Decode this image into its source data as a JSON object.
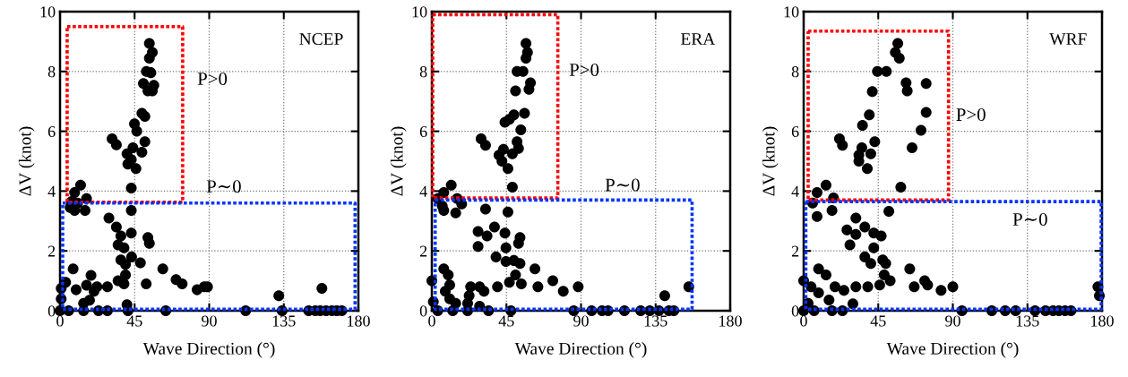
{
  "chart_data": [
    {
      "type": "scatter",
      "title": "NCEP",
      "xlabel": "Wave Direction (°)",
      "ylabel": "ΔV (knot)",
      "xlim": [
        0,
        180
      ],
      "ylim": [
        0,
        10
      ],
      "xticks": [
        0,
        45,
        90,
        135,
        180
      ],
      "yticks": [
        0,
        2,
        4,
        6,
        8,
        10
      ],
      "grid": true,
      "marker": "circle",
      "series": [
        {
          "type": "scatter",
          "color": "#000000",
          "x": [
            53.9,
            55.7,
            53.9,
            52.1,
            54.8,
            50.3,
            56.6,
            53,
            55.7,
            49.4,
            51.2,
            44.9,
            46.3,
            31.4,
            34,
            51.2,
            44,
            40.4,
            49.4,
            43,
            40.9,
            45.8,
            43,
            12.4,
            8.8,
            16,
            7,
            10.6,
            8.8,
            15.1,
            6.1,
            43,
            29.5,
            34,
            36.7,
            43,
            35,
            38.6,
            53,
            53.9,
            36.7,
            39.5,
            43.2,
            48.5,
            7.9,
            18.7,
            62,
            52,
            70,
            73.7,
            82.7,
            87,
            89,
            39.5,
            35,
            38.6,
            28.6,
            22.3,
            16,
            20.5,
            9.7,
            3.4,
            0.7,
            0.7,
            14.2,
            17.8,
            40.4,
            132,
            158,
            0,
            5.2,
            14.2,
            23.2,
            28.6,
            41,
            63.8,
            112,
            134,
            150,
            154,
            157,
            160.5,
            164,
            167,
            170
          ],
          "values": [
            8.94,
            8.64,
            8.44,
            8.0,
            7.96,
            7.6,
            7.54,
            7.35,
            7.35,
            6.6,
            6.5,
            6.25,
            6.0,
            5.75,
            5.55,
            5.65,
            5.45,
            5.25,
            5.3,
            5.05,
            4.9,
            4.75,
            4.1,
            4.2,
            3.95,
            3.75,
            3.65,
            3.6,
            3.35,
            3.35,
            3.45,
            3.35,
            3.1,
            2.8,
            2.5,
            2.6,
            2.2,
            2.1,
            2.45,
            2.25,
            1.7,
            1.55,
            1.8,
            1.6,
            1.4,
            1.18,
            1.4,
            0.9,
            1.04,
            0.9,
            0.7,
            0.8,
            0.8,
            1.2,
            1.0,
            0.9,
            0.8,
            0.8,
            0.85,
            0.65,
            0.7,
            0.95,
            0.75,
            0.4,
            0.25,
            0.35,
            0.2,
            0.5,
            0.75,
            0,
            0,
            0,
            0,
            0,
            0,
            0,
            0,
            0,
            0,
            0,
            0,
            0,
            0,
            0,
            0
          ]
        }
      ],
      "annotations": [
        "P>0",
        "P∼0"
      ]
    },
    {
      "type": "scatter",
      "title": "ERA",
      "xlabel": "Wave Direction (°)",
      "ylabel": "ΔV (knot)",
      "xlim": [
        0,
        180
      ],
      "ylim": [
        0,
        10
      ],
      "xticks": [
        0,
        45,
        90,
        135,
        180
      ],
      "yticks": [
        0,
        2,
        4,
        6,
        8,
        10
      ],
      "grid": true,
      "marker": "circle",
      "series": [
        {
          "type": "scatter",
          "color": "#000000",
          "x": [
            56.8,
            57.7,
            56.8,
            51.4,
            55,
            59.5,
            58.6,
            50.5,
            55.9,
            49.5,
            44.1,
            46.8,
            53.7,
            29.7,
            32.4,
            51.4,
            52.3,
            43.2,
            40.5,
            48.6,
            42.3,
            45.9,
            48.6,
            11.7,
            7.2,
            15.3,
            3.6,
            18,
            6.3,
            14.4,
            7.2,
            45.9,
            32.4,
            37.8,
            27.9,
            33.3,
            44.1,
            53.2,
            52.3,
            27.9,
            44.7,
            38.7,
            44.7,
            49.5,
            53.2,
            62.2,
            7.2,
            9.9,
            50.5,
            0,
            10.8,
            73,
            64,
            79.3,
            88.3,
            23.4,
            28.8,
            39.6,
            46.8,
            54,
            31.5,
            8.1,
            22.5,
            10.8,
            0.9,
            14.4,
            21.6,
            28.8,
            140.5,
            155,
            3.6,
            12.6,
            21.6,
            34.2,
            47.7,
            85.6,
            96.4,
            102.7,
            106.3,
            116.2,
            126,
            131.5,
            137,
            143,
            146
          ],
          "values": [
            8.94,
            8.64,
            8.44,
            8.0,
            8.0,
            7.62,
            7.4,
            7.35,
            6.6,
            6.55,
            6.3,
            6.4,
            6.05,
            5.75,
            5.53,
            5.65,
            5.43,
            5.4,
            5.2,
            5.25,
            5.0,
            4.75,
            4.13,
            4.2,
            3.95,
            3.75,
            3.75,
            3.57,
            3.5,
            3.27,
            3.35,
            3.3,
            3.4,
            2.8,
            2.65,
            2.5,
            2.6,
            2.45,
            2.25,
            2.15,
            2.1,
            1.8,
            1.65,
            1.68,
            1.58,
            1.4,
            1.4,
            1.2,
            1.2,
            1.0,
            0.86,
            1.0,
            0.8,
            0.65,
            0.8,
            0.8,
            0.8,
            0.8,
            0.95,
            0.9,
            0.65,
            0.65,
            0.5,
            0.4,
            0.3,
            0.25,
            0.25,
            0.15,
            0.5,
            0.8,
            0,
            0,
            0,
            0,
            0,
            0,
            0,
            0,
            0,
            0,
            0,
            0,
            0,
            0,
            0
          ]
        }
      ],
      "annotations": [
        "P>0",
        "P∼0"
      ]
    },
    {
      "type": "scatter",
      "title": "WRF",
      "xlabel": "Wave Direction (°)",
      "ylabel": "ΔV (knot)",
      "xlim": [
        0,
        180
      ],
      "ylim": [
        0,
        10
      ],
      "xticks": [
        0,
        45,
        90,
        135,
        180
      ],
      "yticks": [
        0,
        2,
        4,
        6,
        8,
        10
      ],
      "grid": true,
      "marker": "circle",
      "series": [
        {
          "type": "scatter",
          "color": "#000000",
          "x": [
            56.8,
            55.3,
            57.7,
            44.5,
            49.9,
            61.8,
            73.9,
            62.5,
            41.4,
            73.9,
            39.6,
            35.5,
            70.8,
            21.6,
            23.4,
            42.9,
            35.1,
            40.5,
            65.4,
            33.3,
            33.3,
            38.4,
            58.6,
            13.5,
            8.1,
            18,
            5.4,
            17.1,
            8.1,
            51.4,
            31.5,
            36.9,
            26.1,
            42.3,
            46.8,
            31.5,
            27.9,
            42.3,
            36.9,
            47.7,
            40.5,
            49.5,
            9,
            64,
            13.5,
            48.6,
            0,
            73,
            74.8,
            66.7,
            82.9,
            90,
            52.2,
            31.5,
            38.7,
            45.9,
            24.3,
            18.9,
            4.5,
            9,
            15.3,
            2.7,
            29.7,
            177.5,
            178.4,
            0,
            6.3,
            17.1,
            23.4,
            95.5,
            113.5,
            121.6,
            127.9,
            139.6,
            145.9,
            150.5,
            154,
            157.7,
            161.3
          ],
          "values": [
            8.94,
            8.64,
            8.44,
            8.0,
            8.0,
            7.62,
            7.6,
            7.35,
            7.33,
            6.63,
            6.55,
            6.2,
            6.03,
            5.75,
            5.53,
            5.65,
            5.45,
            5.25,
            5.45,
            5.2,
            5.0,
            4.75,
            4.13,
            4.2,
            3.95,
            3.77,
            3.6,
            3.35,
            3.15,
            3.32,
            3.1,
            2.8,
            2.7,
            2.6,
            2.5,
            2.55,
            2.2,
            2.1,
            1.8,
            1.7,
            1.58,
            1.58,
            1.4,
            1.4,
            1.2,
            1.2,
            1.0,
            1.0,
            0.86,
            0.8,
            0.68,
            0.8,
            1.0,
            0.8,
            0.8,
            0.86,
            0.68,
            0.8,
            0.8,
            0.6,
            0.36,
            0.25,
            0.23,
            0.8,
            0.5,
            0,
            0,
            0,
            0,
            0,
            0,
            0,
            0,
            0,
            0,
            0,
            0,
            0,
            0
          ]
        }
      ],
      "annotations": [
        "P>0",
        "P∼0"
      ]
    }
  ]
}
